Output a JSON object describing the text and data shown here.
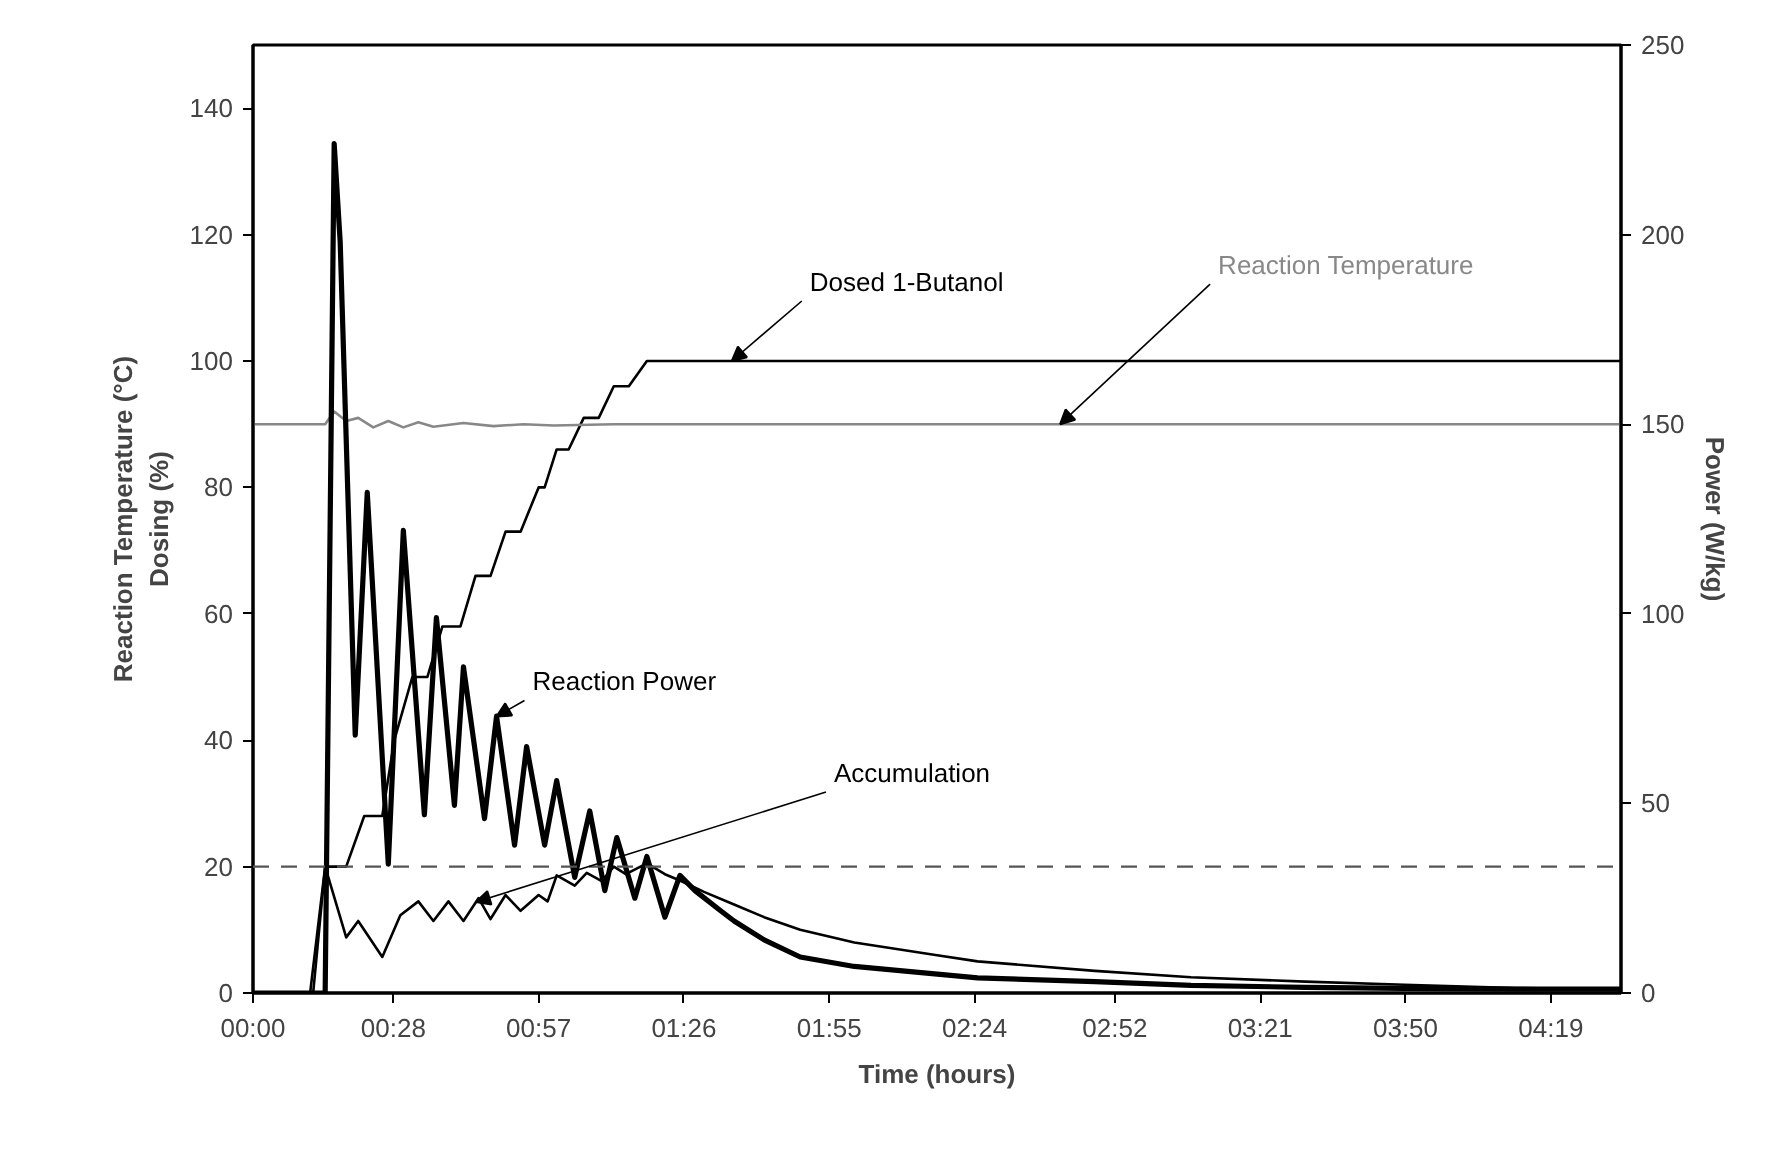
{
  "chart_data": {
    "type": "line",
    "xlabel": "Time (hours)",
    "ylabel": "Reaction Temperature (°C)\nDosing (%)",
    "y2label": "Power (W/kg)",
    "xlim": [
      0,
      4.55
    ],
    "ylim": [
      0,
      150
    ],
    "y2lim": [
      0,
      250
    ],
    "xticks": [
      {
        "value": 0,
        "label": "00:00"
      },
      {
        "value": 0.4667,
        "label": "00:28"
      },
      {
        "value": 0.95,
        "label": "00:57"
      },
      {
        "value": 1.4333,
        "label": "01:26"
      },
      {
        "value": 1.9167,
        "label": "01:55"
      },
      {
        "value": 2.4,
        "label": "02:24"
      },
      {
        "value": 2.8667,
        "label": "02:52"
      },
      {
        "value": 3.35,
        "label": "03:21"
      },
      {
        "value": 3.8333,
        "label": "03:50"
      },
      {
        "value": 4.3167,
        "label": "04:19"
      }
    ],
    "yticks": [
      0,
      20,
      40,
      60,
      80,
      100,
      120,
      140
    ],
    "y2ticks": [
      0,
      50,
      100,
      150,
      200,
      250
    ],
    "grid": false,
    "ref_lines": [
      {
        "axis": "y",
        "value": 20,
        "line_style": "dashed",
        "color": "#555555"
      }
    ],
    "series": [
      {
        "name": "Dosed 1-Butanol",
        "color": "#000000",
        "x": [
          0,
          0.19,
          0.24,
          0.31,
          0.37,
          0.43,
          0.47,
          0.53,
          0.58,
          0.63,
          0.69,
          0.74,
          0.79,
          0.84,
          0.89,
          0.95,
          0.97,
          1.01,
          1.05,
          1.1,
          1.15,
          1.2,
          1.25,
          1.31,
          4.55
        ],
        "values": [
          0,
          0,
          20,
          20,
          28,
          28,
          40,
          50,
          50,
          58,
          58,
          66,
          66,
          73,
          73,
          80,
          80,
          86,
          86,
          91,
          91,
          96,
          96,
          100,
          100
        ]
      },
      {
        "name": "Reaction Temperature",
        "color": "#888888",
        "x": [
          0,
          0.24,
          0.27,
          0.31,
          0.35,
          0.4,
          0.45,
          0.5,
          0.55,
          0.6,
          0.7,
          0.8,
          0.9,
          1.0,
          1.2,
          4.55
        ],
        "values": [
          90,
          90,
          92,
          90.5,
          91,
          89.5,
          90.5,
          89.5,
          90.3,
          89.6,
          90.2,
          89.7,
          90,
          89.8,
          90,
          90
        ]
      },
      {
        "name": "Reaction Power",
        "color": "#000000",
        "axis": "y2",
        "x": [
          0,
          0.24,
          0.27,
          0.29,
          0.34,
          0.38,
          0.45,
          0.5,
          0.57,
          0.61,
          0.67,
          0.7,
          0.77,
          0.81,
          0.87,
          0.91,
          0.97,
          1.01,
          1.07,
          1.12,
          1.17,
          1.21,
          1.27,
          1.31,
          1.37,
          1.42,
          1.47,
          1.55,
          1.6,
          1.7,
          1.82,
          2.0,
          2.41,
          2.8,
          3.12,
          3.5,
          3.83,
          4.2,
          4.55
        ],
        "values": [
          0,
          0,
          224,
          198,
          68,
          132,
          34,
          122,
          47,
          99,
          49.5,
          86,
          46,
          73,
          39,
          65,
          39,
          56,
          30.5,
          48,
          27,
          41,
          25,
          36,
          20,
          31,
          27,
          22,
          19,
          14,
          9.5,
          7,
          4,
          3,
          2,
          1.5,
          1.2,
          1,
          1
        ]
      },
      {
        "name": "Accumulation",
        "color": "#000000",
        "x": [
          0,
          0.2,
          0.24,
          0.31,
          0.35,
          0.43,
          0.49,
          0.55,
          0.6,
          0.65,
          0.7,
          0.75,
          0.79,
          0.84,
          0.89,
          0.95,
          0.98,
          1.01,
          1.07,
          1.11,
          1.16,
          1.2,
          1.24,
          1.31,
          1.37,
          1.42,
          1.5,
          1.6,
          1.7,
          1.82,
          2.0,
          2.27,
          2.41,
          2.8,
          3.12,
          3.5,
          3.83,
          4.2,
          4.55
        ],
        "values": [
          0,
          0,
          20,
          8.8,
          11.4,
          5.7,
          12.3,
          14.5,
          11.4,
          14.5,
          11.4,
          15,
          11.7,
          15.5,
          13,
          15.5,
          14.5,
          18.6,
          17,
          19,
          17.7,
          20,
          18.8,
          20.5,
          18.8,
          17.8,
          16,
          14,
          12,
          10,
          8,
          6,
          5,
          3.5,
          2.5,
          1.8,
          1.3,
          0.8,
          0.5
        ]
      }
    ]
  }
}
